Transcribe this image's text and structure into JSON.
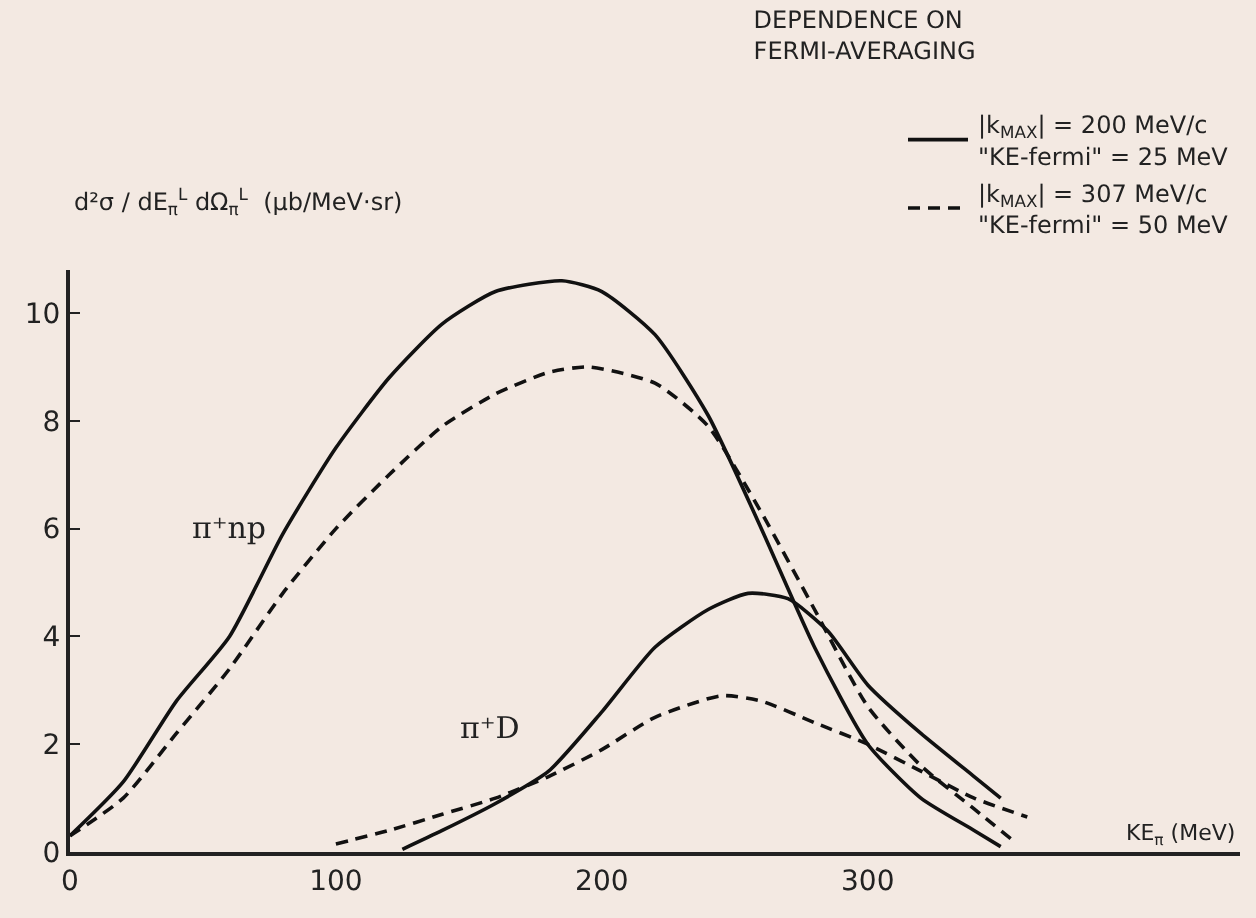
{
  "chart_data": {
    "type": "line",
    "title": "DEPENDENCE ON\nFERMI-AVERAGING",
    "xlabel": "KE$_{π}$ (MeV)",
    "ylabel": "d²σ / dE$_{π}$$^{L}$ dΩ$_{π}$$^{L}$  (μb/MeV·sr)",
    "xlim": [
      0,
      440
    ],
    "ylim": [
      0,
      10.8
    ],
    "xticks": [
      0,
      100,
      200,
      300
    ],
    "yticks": [
      0,
      2,
      4,
      6,
      8,
      10
    ],
    "grid": false,
    "legend": "top right",
    "marker": "none",
    "annotations": [
      "π⁺np",
      "π⁺D"
    ],
    "series": [
      {
        "name": "|k$_{MAX}$| = 200 MeV/c\n\"KE-fermi\" = 25 MeV",
        "color": "#111111",
        "line_style": "solid",
        "x": [
          0,
          20,
          40,
          60,
          80,
          100,
          120,
          140,
          160,
          185,
          200,
          220,
          240,
          260,
          280,
          300,
          320,
          340,
          350
        ],
        "values": [
          0.3,
          1.3,
          2.8,
          4.0,
          5.9,
          7.5,
          8.8,
          9.8,
          10.4,
          10.6,
          10.4,
          9.6,
          8.1,
          6.0,
          3.8,
          2.0,
          1.0,
          0.4,
          0.1
        ]
      },
      {
        "name": "|k$_{MAX}$| = 307 MeV/c\n\"KE-fermi\" = 50 MeV",
        "color": "#111111",
        "line_style": "dashed",
        "x": [
          0,
          20,
          40,
          60,
          80,
          100,
          120,
          140,
          160,
          180,
          195,
          220,
          240,
          260,
          280,
          300,
          320,
          340,
          355
        ],
        "values": [
          0.3,
          1.0,
          2.2,
          3.4,
          4.8,
          6.0,
          7.0,
          7.9,
          8.5,
          8.9,
          9.0,
          8.7,
          7.9,
          6.3,
          4.5,
          2.7,
          1.6,
          0.8,
          0.2
        ]
      },
      {
        "color": "#111111",
        "line_style": "solid",
        "x": [
          125,
          140,
          160,
          180,
          200,
          220,
          240,
          255,
          270,
          285,
          300,
          320,
          340,
          350
        ],
        "values": [
          0.05,
          0.4,
          0.9,
          1.5,
          2.6,
          3.8,
          4.5,
          4.8,
          4.7,
          4.1,
          3.1,
          2.2,
          1.4,
          1.0
        ]
      },
      {
        "color": "#111111",
        "line_style": "dashed",
        "x": [
          100,
          120,
          140,
          160,
          180,
          200,
          220,
          245,
          260,
          280,
          300,
          320,
          340,
          360
        ],
        "values": [
          0.15,
          0.4,
          0.7,
          1.0,
          1.4,
          1.9,
          2.5,
          2.9,
          2.8,
          2.4,
          2.0,
          1.5,
          1.0,
          0.65
        ]
      }
    ]
  }
}
